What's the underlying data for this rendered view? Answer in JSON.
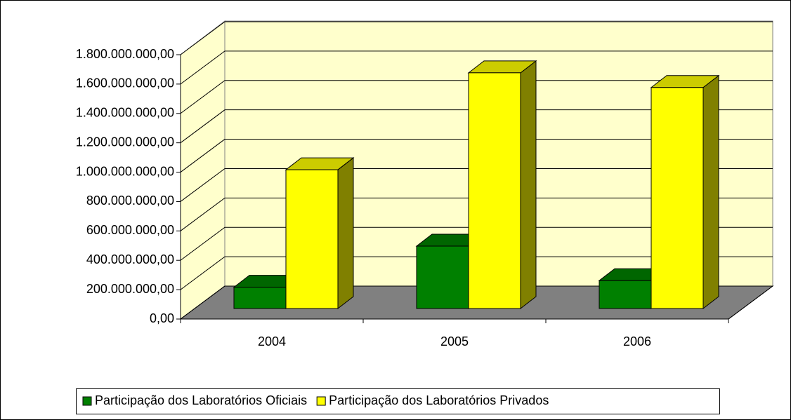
{
  "chart_data": {
    "type": "bar3d",
    "categories": [
      "2004",
      "2005",
      "2006"
    ],
    "series": [
      {
        "name": "Participação dos Laboratórios Oficiais",
        "color": "#008000",
        "values": [
          145000000,
          425000000,
          190000000
        ]
      },
      {
        "name": "Participação dos Laboratórios Privados",
        "color": "#ffff00",
        "values": [
          945000000,
          1605000000,
          1505000000
        ]
      }
    ],
    "ylim": [
      0,
      1800000000
    ],
    "yticks": [
      {
        "value": 0,
        "label": "0,00"
      },
      {
        "value": 200000000,
        "label": "200.000.000,00"
      },
      {
        "value": 400000000,
        "label": "400.000.000,00"
      },
      {
        "value": 600000000,
        "label": "600.000.000,00"
      },
      {
        "value": 800000000,
        "label": "800.000.000,00"
      },
      {
        "value": 1000000000,
        "label": "1.000.000.000,00"
      },
      {
        "value": 1200000000,
        "label": "1.200.000.000,00"
      },
      {
        "value": 1400000000,
        "label": "1.400.000.000,00"
      },
      {
        "value": 1600000000,
        "label": "1.600.000.000,00"
      },
      {
        "value": 1800000000,
        "label": "1.800.000.000,00"
      }
    ],
    "grid": true,
    "legend": "bottom"
  }
}
